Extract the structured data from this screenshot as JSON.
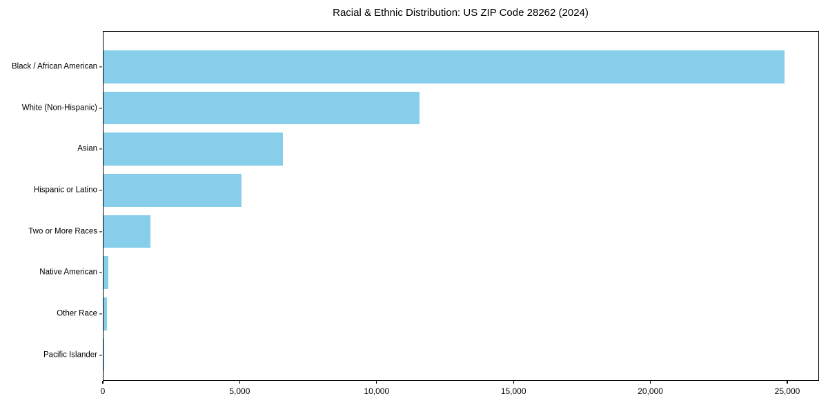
{
  "chart_data": {
    "type": "bar",
    "orientation": "horizontal",
    "title": "Racial & Ethnic Distribution: US ZIP Code 28262 (2024)",
    "categories": [
      "Black / African American",
      "White (Non-Hispanic)",
      "Asian",
      "Hispanic or Latino",
      "Two or More Races",
      "Native American",
      "Other Race",
      "Pacific Islander"
    ],
    "values": [
      24870,
      11540,
      6545,
      5050,
      1720,
      175,
      125,
      25
    ],
    "xlabel": "",
    "ylabel": "",
    "xlim": [
      0,
      26134
    ],
    "x_ticks": [
      0,
      5000,
      10000,
      15000,
      20000,
      25000
    ],
    "x_tick_labels": [
      "0",
      "5,000",
      "10,000",
      "15,000",
      "20,000",
      "25,000"
    ],
    "grid": false,
    "legend": false,
    "bar_color": "#87CEEB",
    "axis_color": "#000000",
    "background_color": "#FFFFFF"
  }
}
